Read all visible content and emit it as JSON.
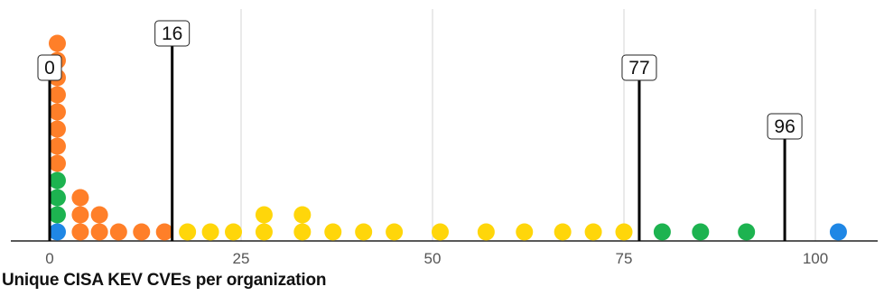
{
  "chart_data": {
    "type": "scatter",
    "title": "",
    "xlabel": "Unique CISA KEV CVEs per organization",
    "ylabel": "",
    "xlim": [
      0,
      100
    ],
    "x_ticks": [
      0,
      25,
      50,
      75,
      100
    ],
    "grid": "vertical",
    "markers": [
      {
        "value": 0,
        "label": "0"
      },
      {
        "value": 16,
        "label": "16"
      },
      {
        "value": 77,
        "label": "77"
      },
      {
        "value": 96,
        "label": "96"
      }
    ],
    "colors": {
      "blue": "#1f87e5",
      "green": "#1db350",
      "orange": "#ff7f29",
      "yellow": "#ffd60a"
    },
    "points": [
      {
        "x": 1,
        "stack": 0,
        "color": "blue"
      },
      {
        "x": 1,
        "stack": 1,
        "color": "green"
      },
      {
        "x": 1,
        "stack": 2,
        "color": "green"
      },
      {
        "x": 1,
        "stack": 3,
        "color": "green"
      },
      {
        "x": 1,
        "stack": 4,
        "color": "orange"
      },
      {
        "x": 1,
        "stack": 5,
        "color": "orange"
      },
      {
        "x": 1,
        "stack": 6,
        "color": "orange"
      },
      {
        "x": 1,
        "stack": 7,
        "color": "orange"
      },
      {
        "x": 1,
        "stack": 8,
        "color": "orange"
      },
      {
        "x": 1,
        "stack": 9,
        "color": "orange"
      },
      {
        "x": 1,
        "stack": 10,
        "color": "orange"
      },
      {
        "x": 1,
        "stack": 11,
        "color": "orange"
      },
      {
        "x": 4,
        "stack": 0,
        "color": "orange"
      },
      {
        "x": 4,
        "stack": 1,
        "color": "orange"
      },
      {
        "x": 4,
        "stack": 2,
        "color": "orange"
      },
      {
        "x": 6.5,
        "stack": 0,
        "color": "orange"
      },
      {
        "x": 6.5,
        "stack": 1,
        "color": "orange"
      },
      {
        "x": 9,
        "stack": 0,
        "color": "orange"
      },
      {
        "x": 12,
        "stack": 0,
        "color": "orange"
      },
      {
        "x": 15,
        "stack": 0,
        "color": "orange"
      },
      {
        "x": 18,
        "stack": 0,
        "color": "yellow"
      },
      {
        "x": 21,
        "stack": 0,
        "color": "yellow"
      },
      {
        "x": 24,
        "stack": 0,
        "color": "yellow"
      },
      {
        "x": 28,
        "stack": 0,
        "color": "yellow"
      },
      {
        "x": 28,
        "stack": 1,
        "color": "yellow"
      },
      {
        "x": 33,
        "stack": 0,
        "color": "yellow"
      },
      {
        "x": 33,
        "stack": 1,
        "color": "yellow"
      },
      {
        "x": 37,
        "stack": 0,
        "color": "yellow"
      },
      {
        "x": 41,
        "stack": 0,
        "color": "yellow"
      },
      {
        "x": 45,
        "stack": 0,
        "color": "yellow"
      },
      {
        "x": 51,
        "stack": 0,
        "color": "yellow"
      },
      {
        "x": 57,
        "stack": 0,
        "color": "yellow"
      },
      {
        "x": 62,
        "stack": 0,
        "color": "yellow"
      },
      {
        "x": 67,
        "stack": 0,
        "color": "yellow"
      },
      {
        "x": 71,
        "stack": 0,
        "color": "yellow"
      },
      {
        "x": 75,
        "stack": 0,
        "color": "yellow"
      },
      {
        "x": 80,
        "stack": 0,
        "color": "green"
      },
      {
        "x": 85,
        "stack": 0,
        "color": "green"
      },
      {
        "x": 91,
        "stack": 0,
        "color": "green"
      },
      {
        "x": 103,
        "stack": 0,
        "color": "blue"
      }
    ]
  }
}
